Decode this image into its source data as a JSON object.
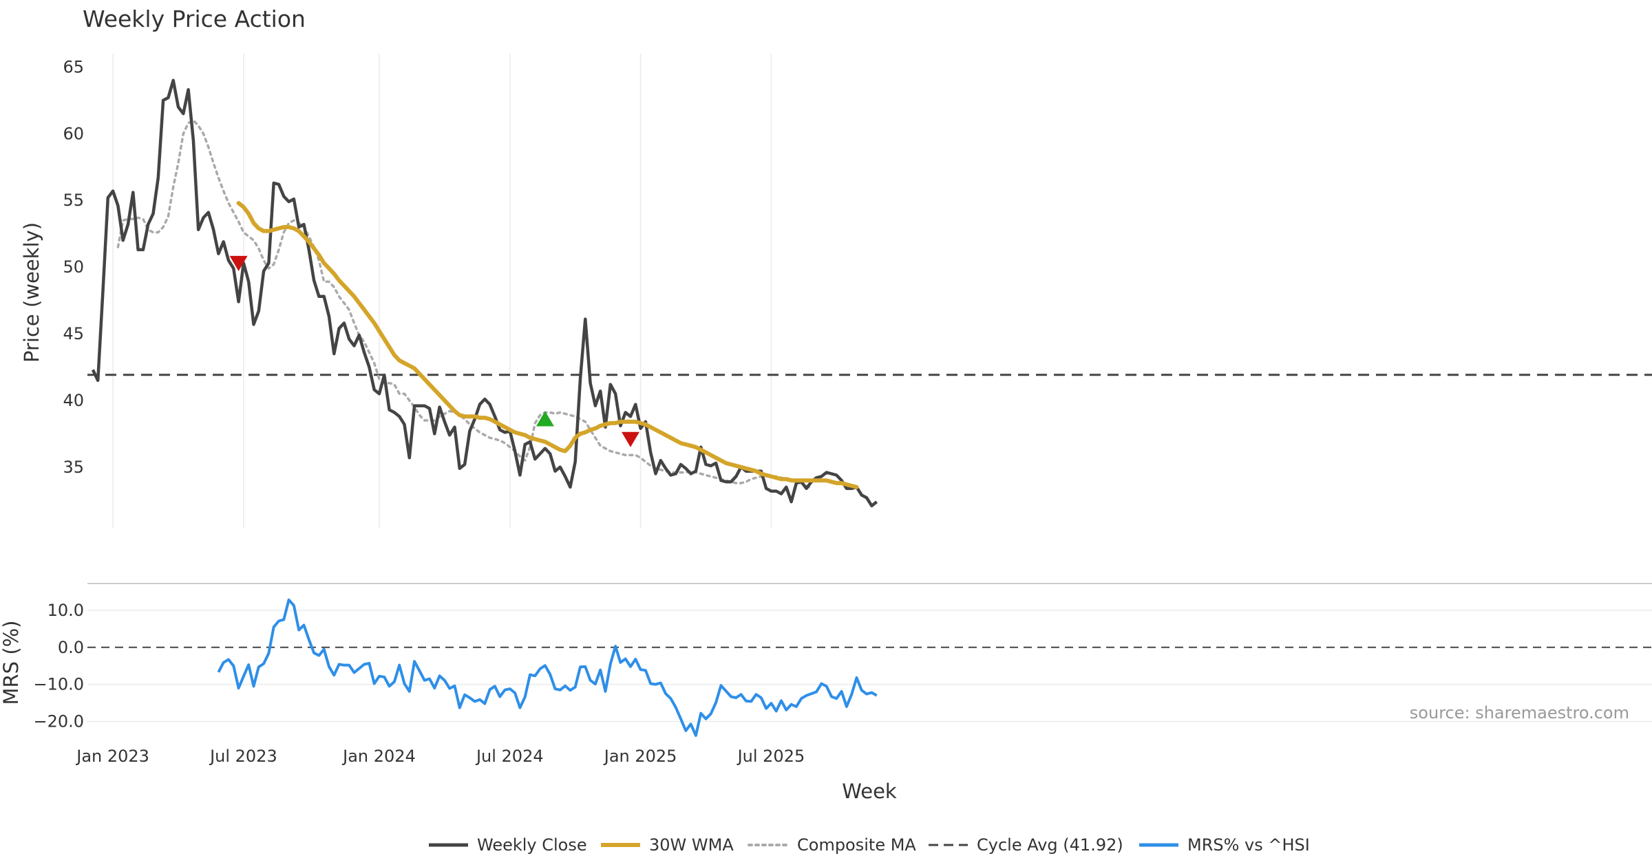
{
  "title": "Weekly Price Action",
  "source_text": "source: sharemaestro.com",
  "colors": {
    "close": "#444444",
    "wma": "#D4A52A",
    "composite": "#AAAAAA",
    "cycle": "#444444",
    "mrs": "#2E8FE8",
    "buy": "#22AA22",
    "sell": "#CC1111",
    "grid": "#EBEBEB"
  },
  "chart_data": [
    {
      "type": "line",
      "title": "Weekly Price Action",
      "ylabel": "Price (weekly)",
      "ylim": [
        30.4,
        66
      ],
      "yticks": [
        35,
        40,
        45,
        50,
        55,
        60,
        65
      ],
      "x_start_week": -1,
      "cycle_avg": 41.92,
      "series": [
        {
          "name": "Weekly Close",
          "start": 0,
          "values": [
            42.3,
            41.5,
            48.2,
            55.2,
            55.7,
            54.6,
            52.0,
            53.2,
            55.6,
            51.3,
            51.3,
            53.2,
            54.0,
            56.7,
            62.5,
            62.7,
            64.0,
            62.0,
            61.5,
            63.3,
            59.5,
            52.8,
            53.7,
            54.1,
            52.8,
            51.0,
            51.9,
            50.5,
            49.9,
            47.4,
            50.3,
            48.9,
            45.7,
            46.7,
            49.7,
            50.3,
            56.3,
            56.2,
            55.3,
            54.9,
            55.1,
            53.0,
            53.2,
            51.3,
            49.0,
            47.8,
            47.8,
            46.3,
            43.5,
            45.4,
            45.8,
            44.6,
            44.1,
            44.9,
            43.6,
            42.5,
            40.8,
            40.5,
            41.9,
            39.3,
            39.1,
            38.8,
            38.2,
            35.7,
            39.6,
            39.6,
            39.6,
            39.4,
            37.5,
            39.5,
            38.4,
            37.4,
            38.0,
            34.9,
            35.2,
            37.7,
            38.6,
            39.7,
            40.1,
            39.7,
            38.8,
            37.8,
            37.6,
            37.7,
            36.2,
            34.4,
            36.7,
            36.9,
            35.6,
            36.0,
            36.4,
            36.0,
            34.7,
            35.0,
            34.3,
            33.5,
            35.4,
            41.6,
            46.1,
            41.3,
            39.6,
            40.7,
            38.0,
            41.2,
            40.5,
            38.1,
            39.1,
            38.8,
            39.7,
            37.9,
            38.4,
            36.1,
            34.5,
            35.5,
            34.9,
            34.4,
            34.5,
            35.2,
            34.9,
            34.5,
            34.7,
            36.5,
            35.2,
            35.1,
            35.3,
            34.0,
            33.9,
            33.9,
            34.3,
            35.0,
            34.7,
            34.7,
            34.7,
            34.7,
            33.4,
            33.2,
            33.2,
            33.0,
            33.5,
            32.4,
            33.8,
            33.9,
            33.4,
            33.9,
            34.2,
            34.3,
            34.6,
            34.5,
            34.4,
            34.0,
            33.4,
            33.4,
            33.5,
            32.9,
            32.7,
            32.1,
            32.4
          ]
        },
        {
          "name": "30W WMA",
          "start": 29,
          "values": [
            54.8,
            54.5,
            54.0,
            53.3,
            52.9,
            52.7,
            52.7,
            52.8,
            52.9,
            53.0,
            53.0,
            52.9,
            52.7,
            52.3,
            51.9,
            51.4,
            50.9,
            50.3,
            49.9,
            49.5,
            49.0,
            48.6,
            48.2,
            47.8,
            47.3,
            46.8,
            46.3,
            45.8,
            45.2,
            44.6,
            44.0,
            43.4,
            43.0,
            42.8,
            42.6,
            42.4,
            42.0,
            41.6,
            41.2,
            40.8,
            40.4,
            40.0,
            39.6,
            39.2,
            38.9,
            38.8,
            38.8,
            38.8,
            38.7,
            38.7,
            38.6,
            38.4,
            38.2,
            38.0,
            37.8,
            37.6,
            37.5,
            37.4,
            37.2,
            37.1,
            37.0,
            36.9,
            36.7,
            36.5,
            36.3,
            36.2,
            36.6,
            37.2,
            37.5,
            37.6,
            37.8,
            37.9,
            38.1,
            38.2,
            38.3,
            38.3,
            38.4,
            38.4,
            38.4,
            38.4,
            38.3,
            38.2,
            38.0,
            37.8,
            37.6,
            37.4,
            37.2,
            37.0,
            36.8,
            36.7,
            36.6,
            36.5,
            36.3,
            36.1,
            35.9,
            35.7,
            35.5,
            35.3,
            35.2,
            35.1,
            35.0,
            34.9,
            34.8,
            34.7,
            34.5,
            34.4,
            34.3,
            34.2,
            34.1,
            34.1,
            34.0,
            34.0,
            34.0,
            34.0,
            34.0,
            34.0,
            34.0,
            34.0,
            33.9,
            33.8,
            33.8,
            33.7,
            33.6,
            33.5
          ]
        },
        {
          "name": "Composite MA",
          "start": 5,
          "values": [
            51.5,
            53.5,
            53.6,
            53.6,
            53.7,
            53.6,
            52.8,
            52.6,
            52.6,
            53.0,
            53.8,
            56.0,
            57.8,
            60.0,
            60.8,
            61.0,
            60.6,
            60.0,
            59.0,
            57.8,
            56.7,
            55.7,
            54.8,
            54.1,
            53.4,
            52.6,
            52.3,
            52.0,
            51.4,
            50.5,
            49.9,
            50.2,
            51.3,
            52.6,
            53.3,
            53.5,
            53.3,
            53.0,
            52.3,
            51.5,
            50.5,
            48.9,
            48.9,
            48.5,
            47.8,
            47.3,
            46.8,
            45.8,
            44.9,
            44.4,
            43.6,
            42.8,
            41.6,
            41.3,
            41.3,
            41.2,
            40.5,
            40.5,
            40.0,
            39.5,
            38.9,
            38.5,
            38.5,
            38.5,
            38.8,
            39.0,
            39.2,
            39.1,
            38.9,
            38.6,
            38.2,
            37.9,
            37.6,
            37.4,
            37.2,
            37.1,
            37.0,
            36.8,
            36.5,
            36.2,
            35.8,
            35.5,
            36.5,
            38.3,
            38.9,
            39.1,
            39.1,
            39.0,
            39.1,
            39.0,
            38.9,
            38.8,
            38.6,
            38.4,
            37.8,
            37.2,
            36.6,
            36.4,
            36.2,
            36.1,
            36.0,
            35.9,
            35.9,
            35.9,
            35.7,
            35.4,
            35.1,
            34.9,
            34.8,
            34.7,
            34.6,
            34.6,
            34.6,
            34.6,
            34.7,
            34.6,
            34.5,
            34.4,
            34.3,
            34.2,
            34.1,
            34.0,
            33.9,
            33.8,
            33.8,
            33.9,
            34.1,
            34.2,
            34.3,
            34.3,
            34.3,
            34.3,
            34.2,
            34.1,
            34.0,
            33.9,
            33.8,
            33.6,
            33.4
          ]
        }
      ],
      "markers": [
        {
          "type": "sell",
          "week": 29,
          "price": 50.3
        },
        {
          "type": "buy",
          "week": 90,
          "price": 38.6
        },
        {
          "type": "sell",
          "week": 107,
          "price": 37.1
        }
      ]
    },
    {
      "type": "line",
      "ylabel": "MRS (%)",
      "ylim": [
        -24,
        15
      ],
      "yticks": [
        10.0,
        0.0,
        -10.0,
        -20.0
      ],
      "ytick_labels": [
        "10.0",
        "0.0",
        "−10.0",
        "−20.0"
      ],
      "xlabel": "Week",
      "x_ticks": [
        {
          "label": "Jan 2023",
          "week": 4
        },
        {
          "label": "Jul 2023",
          "week": 30
        },
        {
          "label": "Jan 2024",
          "week": 57
        },
        {
          "label": "Jul 2024",
          "week": 83
        },
        {
          "label": "Jan 2025",
          "week": 109
        },
        {
          "label": "Jul 2025",
          "week": 135
        }
      ],
      "series": [
        {
          "name": "MRS% vs ^HSI",
          "start": 25,
          "values": [
            -6.7,
            -4.1,
            -3.3,
            -5.0,
            -11.0,
            -7.8,
            -4.7,
            -10.5,
            -5.3,
            -4.4,
            -1.6,
            5.5,
            7.1,
            7.5,
            12.8,
            11.3,
            4.7,
            6.0,
            2.1,
            -1.5,
            -2.2,
            -0.5,
            -5.2,
            -7.5,
            -4.6,
            -4.8,
            -4.8,
            -6.8,
            -5.7,
            -4.6,
            -4.3,
            -9.8,
            -7.8,
            -8.0,
            -10.5,
            -9.3,
            -4.8,
            -9.8,
            -11.9,
            -3.8,
            -6.3,
            -8.9,
            -8.5,
            -11.0,
            -7.7,
            -8.9,
            -11.1,
            -10.4,
            -16.3,
            -12.8,
            -13.6,
            -14.6,
            -14.1,
            -15.2,
            -11.4,
            -10.5,
            -13.3,
            -11.5,
            -11.2,
            -12.3,
            -16.3,
            -13.4,
            -7.4,
            -7.7,
            -5.8,
            -4.9,
            -7.3,
            -11.2,
            -11.5,
            -10.4,
            -11.6,
            -10.7,
            -5.3,
            -5.2,
            -8.9,
            -9.9,
            -6.1,
            -11.9,
            -4.5,
            0.3,
            -4.1,
            -3.1,
            -5.2,
            -3.2,
            -6.0,
            -6.2,
            -9.8,
            -10.0,
            -9.6,
            -12.5,
            -13.8,
            -16.2,
            -19.3,
            -22.5,
            -20.7,
            -23.8,
            -17.8,
            -19.3,
            -17.9,
            -14.9,
            -10.3,
            -11.8,
            -13.3,
            -13.6,
            -12.7,
            -14.5,
            -14.6,
            -12.7,
            -13.6,
            -16.5,
            -15.1,
            -17.2,
            -14.4,
            -16.9,
            -15.4,
            -16.0,
            -13.8,
            -13.0,
            -12.5,
            -12.0,
            -9.8,
            -10.5,
            -13.3,
            -13.8,
            -11.9,
            -16.0,
            -12.7,
            -8.2,
            -11.6,
            -12.6,
            -12.2,
            -13.0
          ]
        }
      ]
    }
  ],
  "legend": [
    {
      "key": "close",
      "label": "Weekly Close"
    },
    {
      "key": "wma",
      "label": "30W WMA"
    },
    {
      "key": "composite",
      "label": "Composite MA"
    },
    {
      "key": "cycle",
      "label": "Cycle Avg (41.92)"
    },
    {
      "key": "mrs",
      "label": "MRS% vs ^HSI"
    }
  ]
}
